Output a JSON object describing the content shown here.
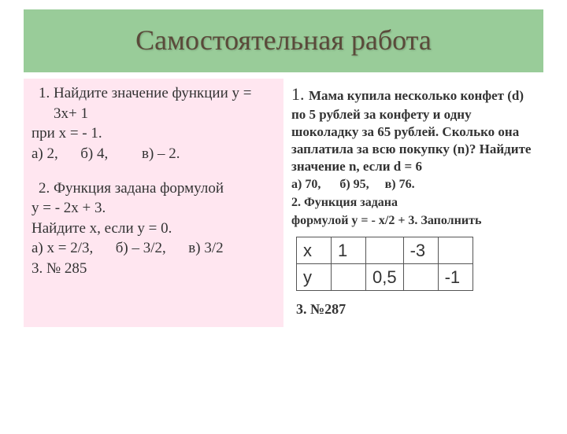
{
  "title": "Самостоятельная работа",
  "left": {
    "q1_item": "Найдите значение функции  у = 3х+ 1",
    "q1_cond": "при х = - 1.",
    "q1_opts": "а) 2,      б) 4,         в) – 2.",
    "q2_item": "Функция задана формулой",
    "q2_formula": " у = - 2х + 3.",
    "q2_task": "Найдите х, если у = 0.",
    "q2_opts": "а) х = 2/3,      б) – 3/2,      в) 3/2",
    "q3": "3. № 285"
  },
  "right": {
    "q1_start": "1. ",
    "q1_body": "Мама купила несколько конфет (d) по 5 рублей за конфету и одну шоколадку за 65 рублей. Сколько она заплатила за всю покупку (n)? Найдите значение n, если d = 6",
    "q1_opts": "а) 70,      б) 95,     в) 76.",
    "q2_l1": "2. Функция задана",
    "q2_l2": "формулой у = - х/2 + 3. Заполнить",
    "q3": "3. №287",
    "table": {
      "r1": [
        "x",
        "1",
        "",
        "-3",
        ""
      ],
      "r2": [
        "y",
        "",
        "0,5",
        "",
        "-1"
      ]
    }
  },
  "styling": {
    "title_bg": "#99cc99",
    "title_color": "#5a4a3a",
    "left_bg": "#ffe6f0",
    "right_bg": "#ffffff",
    "border_color": "#555555"
  }
}
